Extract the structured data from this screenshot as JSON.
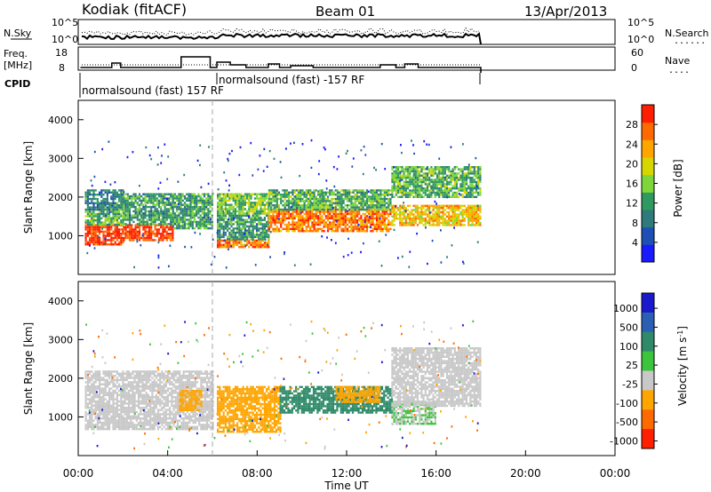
{
  "header": {
    "station": "Kodiak (fitACF)",
    "beam": "Beam 01",
    "date": "13/Apr/2013"
  },
  "panels": {
    "noise": {
      "left_label": "N.Sky",
      "right_label": "N.Search",
      "right_legend": "......",
      "yticks_left": [
        "10^5",
        "10^0"
      ],
      "yticks_right": [
        "10^5",
        "10^0"
      ]
    },
    "freq": {
      "left_label_1": "Freq.",
      "left_label_2": "[MHz]",
      "right_label": "Nave",
      "right_legend": "....",
      "yticks_left": [
        "18",
        "8"
      ],
      "yticks_right": [
        "60",
        "0"
      ]
    },
    "cpid": {
      "label": "CPID",
      "segments": [
        "normalsound (fast) 157 RF",
        "normalsound (fast) -157 RF"
      ]
    }
  },
  "axes": {
    "ylabel": "Slant Range [km]",
    "xlabel": "Time UT",
    "xticks": [
      "00:00",
      "04:00",
      "08:00",
      "12:00",
      "16:00",
      "20:00",
      "00:00"
    ],
    "yticks": [
      "1000",
      "2000",
      "3000",
      "4000"
    ]
  },
  "power_colorbar": {
    "label": "Power [dB]",
    "ticks": [
      "4",
      "8",
      "12",
      "16",
      "20",
      "24",
      "28"
    ],
    "colors": [
      "#1a1aff",
      "#1e4fb4",
      "#2f7a7a",
      "#2f9a5f",
      "#7fd63a",
      "#d6d600",
      "#ffa500",
      "#ff6a00",
      "#ff1e00"
    ]
  },
  "velocity_colorbar": {
    "label": "Velocity [m s",
    "label_sup": "-1",
    "label_end": "]",
    "ticks": [
      "1000",
      "500",
      "100",
      "25",
      "-25",
      "-100",
      "-500",
      "-1000"
    ],
    "colors": [
      "#1a1acc",
      "#2b5fb4",
      "#2f8a6a",
      "#3cc43c",
      "#c8c8c8",
      "#ffa500",
      "#ff6a00",
      "#ff1e00"
    ]
  },
  "chart_data": {
    "type": "heatmap",
    "x_range_hours": [
      0,
      24
    ],
    "data_end_hour": 18,
    "y_range_km": [
      0,
      4500
    ],
    "marker_hour": 6,
    "power_regions": [
      {
        "t0": 0.3,
        "t1": 2.0,
        "r0": 800,
        "r1": 1300,
        "level": 28
      },
      {
        "t0": 0.3,
        "t1": 2.0,
        "r0": 1300,
        "r1": 1700,
        "level": 12
      },
      {
        "t0": 0.3,
        "t1": 2.0,
        "r0": 1700,
        "r1": 2200,
        "level": 8
      },
      {
        "t0": 2.0,
        "t1": 4.2,
        "r0": 900,
        "r1": 1300,
        "level": 28
      },
      {
        "t0": 2.0,
        "t1": 4.2,
        "r0": 1300,
        "r1": 2100,
        "level": 10
      },
      {
        "t0": 4.2,
        "t1": 6.0,
        "r0": 1200,
        "r1": 2100,
        "level": 10
      },
      {
        "t0": 6.2,
        "t1": 8.5,
        "r0": 700,
        "r1": 900,
        "level": 24
      },
      {
        "t0": 6.2,
        "t1": 8.5,
        "r0": 900,
        "r1": 1600,
        "level": 10
      },
      {
        "t0": 6.2,
        "t1": 8.5,
        "r0": 1600,
        "r1": 2100,
        "level": 14
      },
      {
        "t0": 8.5,
        "t1": 14.0,
        "r0": 1100,
        "r1": 1700,
        "level": 24
      },
      {
        "t0": 8.5,
        "t1": 14.0,
        "r0": 1700,
        "r1": 2200,
        "level": 12
      },
      {
        "t0": 14.0,
        "t1": 18.0,
        "r0": 1300,
        "r1": 1800,
        "level": 20
      },
      {
        "t0": 14.0,
        "t1": 18.0,
        "r0": 2000,
        "r1": 2800,
        "level": 12
      }
    ],
    "velocity_regions": [
      {
        "t0": 0.3,
        "t1": 6.0,
        "r0": 700,
        "r1": 2200,
        "v": 0
      },
      {
        "t0": 4.5,
        "t1": 5.5,
        "r0": 1200,
        "r1": 1700,
        "v": -100
      },
      {
        "t0": 6.2,
        "t1": 9.0,
        "r0": 600,
        "r1": 1800,
        "v": -100
      },
      {
        "t0": 9.0,
        "t1": 14.0,
        "r0": 1100,
        "r1": 1800,
        "v": 100
      },
      {
        "t0": 11.5,
        "t1": 13.5,
        "r0": 1400,
        "r1": 1800,
        "v": -100
      },
      {
        "t0": 14.0,
        "t1": 16.0,
        "r0": 800,
        "r1": 1400,
        "v": 25
      },
      {
        "t0": 14.0,
        "t1": 18.0,
        "r0": 1300,
        "r1": 2800,
        "v": 0
      }
    ]
  }
}
